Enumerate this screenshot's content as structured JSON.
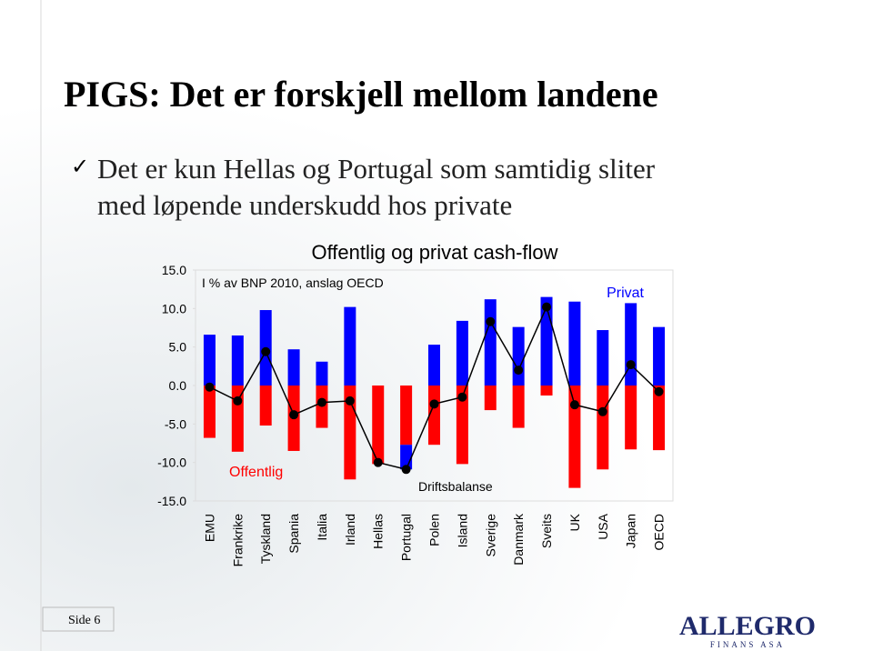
{
  "slide_title": "PIGS: Det er forskjell mellom landene",
  "bullet_lines": [
    "Det er kun Hellas og Portugal som samtidig sliter",
    "med løpende underskudd hos private"
  ],
  "footer": "Side 6",
  "logo": {
    "name": "ALLEGRO",
    "sub": "FINANS ASA"
  },
  "chart_data": {
    "type": "bar",
    "title": "Offentlig og privat cash-flow",
    "subtitle": "I % av BNP 2010, anslag OECD",
    "categories": [
      "EMU",
      "Frankrike",
      "Tyskland",
      "Spania",
      "Italia",
      "Irland",
      "Hellas",
      "Portugal",
      "Polen",
      "Island",
      "Sverige",
      "Danmark",
      "Sveits",
      "UK",
      "USA",
      "Japan",
      "OECD"
    ],
    "series": [
      {
        "name": "Offentlig",
        "type": "bar",
        "color": "#ff0000",
        "values": [
          -6.8,
          -8.6,
          -5.2,
          -8.5,
          -5.5,
          -12.2,
          -10.2,
          -7.7,
          -7.7,
          -10.2,
          -3.2,
          -5.5,
          -1.3,
          -13.3,
          -10.9,
          -8.3,
          -8.4
        ]
      },
      {
        "name": "Privat",
        "type": "bar",
        "color": "#0000ff",
        "values": [
          6.6,
          6.5,
          9.8,
          4.7,
          3.1,
          10.2,
          0,
          -3.2,
          5.3,
          8.4,
          11.2,
          7.6,
          11.5,
          10.9,
          7.2,
          10.7,
          7.6
        ]
      },
      {
        "name": "Driftsbalanse",
        "type": "line",
        "color": "#000000",
        "values": [
          -0.2,
          -2.0,
          4.4,
          -3.8,
          -2.2,
          -2.0,
          -10.0,
          -10.9,
          -2.4,
          -1.5,
          8.3,
          2.0,
          10.2,
          -2.5,
          -3.4,
          2.7,
          -0.8
        ]
      }
    ],
    "ylim": [
      -15,
      15
    ],
    "yticks": [
      {
        "value": 15,
        "label": "15.0"
      },
      {
        "value": 10,
        "label": "10.0"
      },
      {
        "value": 5,
        "label": "5.0"
      },
      {
        "value": 0,
        "label": "0.0"
      },
      {
        "value": -5,
        "label": "-5.0"
      },
      {
        "value": -10,
        "label": "-10.0"
      },
      {
        "value": -15,
        "label": "-15.0"
      }
    ],
    "grid": false
  }
}
